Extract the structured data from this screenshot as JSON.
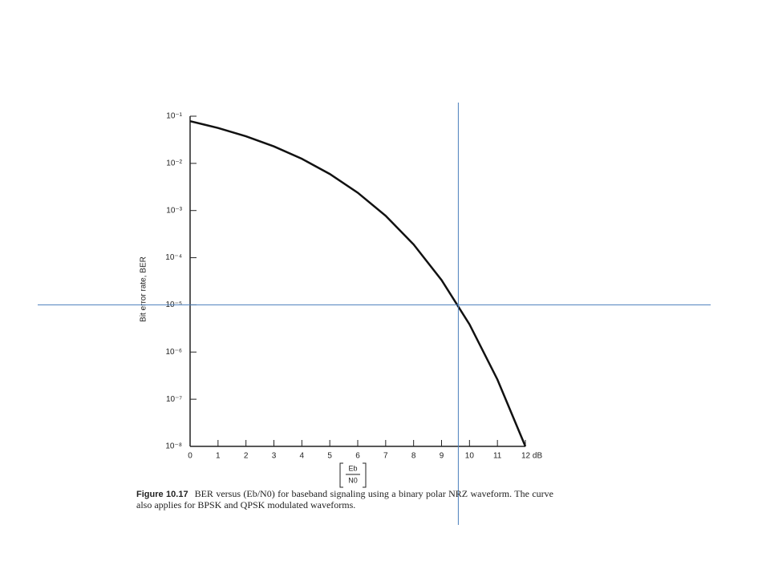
{
  "chart_data": {
    "type": "line",
    "ylabel": "Bit error rate, BER",
    "xlabel_numerator": "Eb",
    "xlabel_denominator": "N0",
    "log_y": true,
    "x": [
      0,
      1,
      2,
      3,
      4,
      5,
      6,
      7,
      8,
      9,
      10,
      11,
      12
    ],
    "series": [
      {
        "name": "BER",
        "color": "#111111",
        "values": [
          0.0786,
          0.0563,
          0.0375,
          0.0229,
          0.0125,
          0.00595,
          0.00239,
          0.000773,
          0.000191,
          3.36e-05,
          3.87e-06,
          2.61e-07,
          1e-08
        ]
      }
    ],
    "xlim": [
      0,
      12
    ],
    "xticks": [
      0,
      1,
      2,
      3,
      4,
      5,
      6,
      7,
      8,
      9,
      10,
      11,
      {
        "value": 12,
        "label": "12 dB"
      }
    ],
    "ylim": [
      1e-08,
      0.1
    ],
    "yticks": [
      {
        "value": 0.1,
        "label": "10⁻¹"
      },
      {
        "value": 0.01,
        "label": "10⁻²"
      },
      {
        "value": 0.001,
        "label": "10⁻³"
      },
      {
        "value": 0.0001,
        "label": "10⁻⁴"
      },
      {
        "value": 1e-05,
        "label": "10⁻⁵"
      },
      {
        "value": 1e-06,
        "label": "10⁻⁶"
      },
      {
        "value": 1e-07,
        "label": "10⁻⁷"
      },
      {
        "value": 1e-08,
        "label": "10⁻⁸"
      }
    ],
    "reference_lines": {
      "x": 9.6,
      "y": 1e-05,
      "color": "#4a7ebb"
    },
    "caption_label": "Figure 10.17",
    "caption_text": "BER versus (Eb/N0) for baseband signaling using a binary polar NRZ waveform. The curve also applies for BPSK and QPSK modulated waveforms."
  }
}
